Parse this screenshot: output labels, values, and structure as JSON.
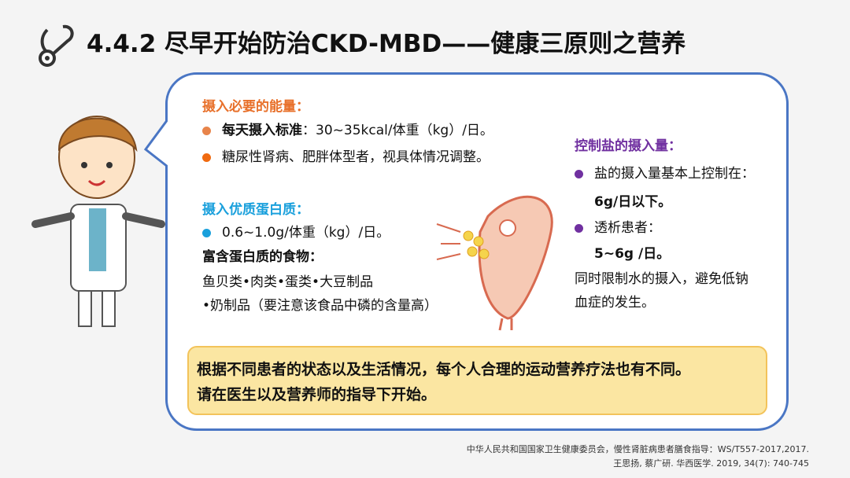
{
  "title": "4.4.2  尽早开始防治CKD-MBD——健康三原则之营养",
  "energy": {
    "heading": "摄入必要的能量：",
    "b1_bold": "每天摄入标准",
    "b1_rest": "：30~35kcal/体重（kg）/日。",
    "b2": "糖尿性肾病、肥胖体型者，视具体情况调整。"
  },
  "protein": {
    "heading": "摄入优质蛋白质：",
    "b1": "0.6~1.0g/体重（kg）/日。",
    "foods_heading": "富含蛋白质的食物：",
    "foods_1": "鱼贝类•肉类•蛋类•大豆制品",
    "foods_2": "•奶制品（要注意该食品中磷的含量高）"
  },
  "salt": {
    "heading": "控制盐的摄入量：",
    "b1": "盐的摄入量基本上控制在：",
    "b1_value": "6g/日以下。",
    "b2": "透析患者：",
    "b2_value": "5~6g /日。",
    "note": "同时限制水的摄入，避免低钠",
    "note2": "血症的发生。"
  },
  "note": {
    "line1": "根据不同患者的状态以及生活情况，每个人合理的运动营养疗法也有不同。",
    "line2": "请在医生以及营养师的指导下开始。"
  },
  "references": [
    "中华人民共和国国家卫生健康委员会，慢性肾脏病患者膳食指导：WS/T557-2017,2017.",
    "王思扬, 蔡广研. 华西医学. 2019, 34(7): 740-745"
  ],
  "colors": {
    "energy": "#e8702a",
    "protein": "#1aa0dc",
    "salt": "#7030a0",
    "bubble_border": "#4a76c4",
    "note_bg": "#fbe6a2"
  }
}
